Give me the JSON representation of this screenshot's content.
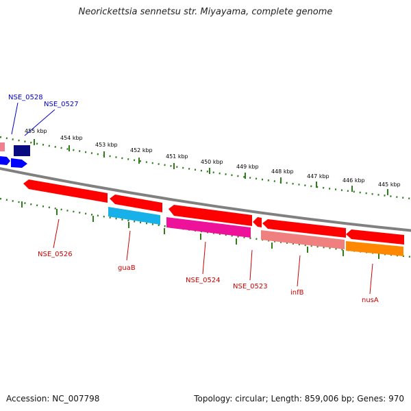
{
  "title": "Neorickettsia sennetsu str. Miyayama, complete genome",
  "footer": {
    "accession_label": "Accession:",
    "accession": "NC_007798",
    "topology_label": "Topology:",
    "topology": "circular;",
    "length_label": "Length:",
    "length": "859,006 bp;",
    "genes_label": "Genes:",
    "genes": "970"
  },
  "colors": {
    "backbone": "#808080",
    "ticks": "#2e7d1a",
    "red_gene": "#ff0000",
    "dark_red_label": "#cc0000",
    "blue_label": "#0000cc",
    "cyan_gene": "#18b0e8",
    "magenta_gene": "#ee1199",
    "salmon_gene": "#f08080",
    "orange_gene": "#ff8800",
    "navy_gene": "#0a0a80",
    "blue_gene": "#0000ff"
  },
  "kbp_labels": [
    "455 kbp",
    "454 kbp",
    "453 kbp",
    "452 kbp",
    "451 kbp",
    "450 kbp",
    "449 kbp",
    "448 kbp",
    "447 kbp",
    "446 kbp",
    "445 kbp"
  ],
  "gene_labels": [
    "NSE_0528",
    "NSE_0527",
    "NSE_0526",
    "guaB",
    "NSE_0524",
    "NSE_0523",
    "infB",
    "nusA"
  ]
}
